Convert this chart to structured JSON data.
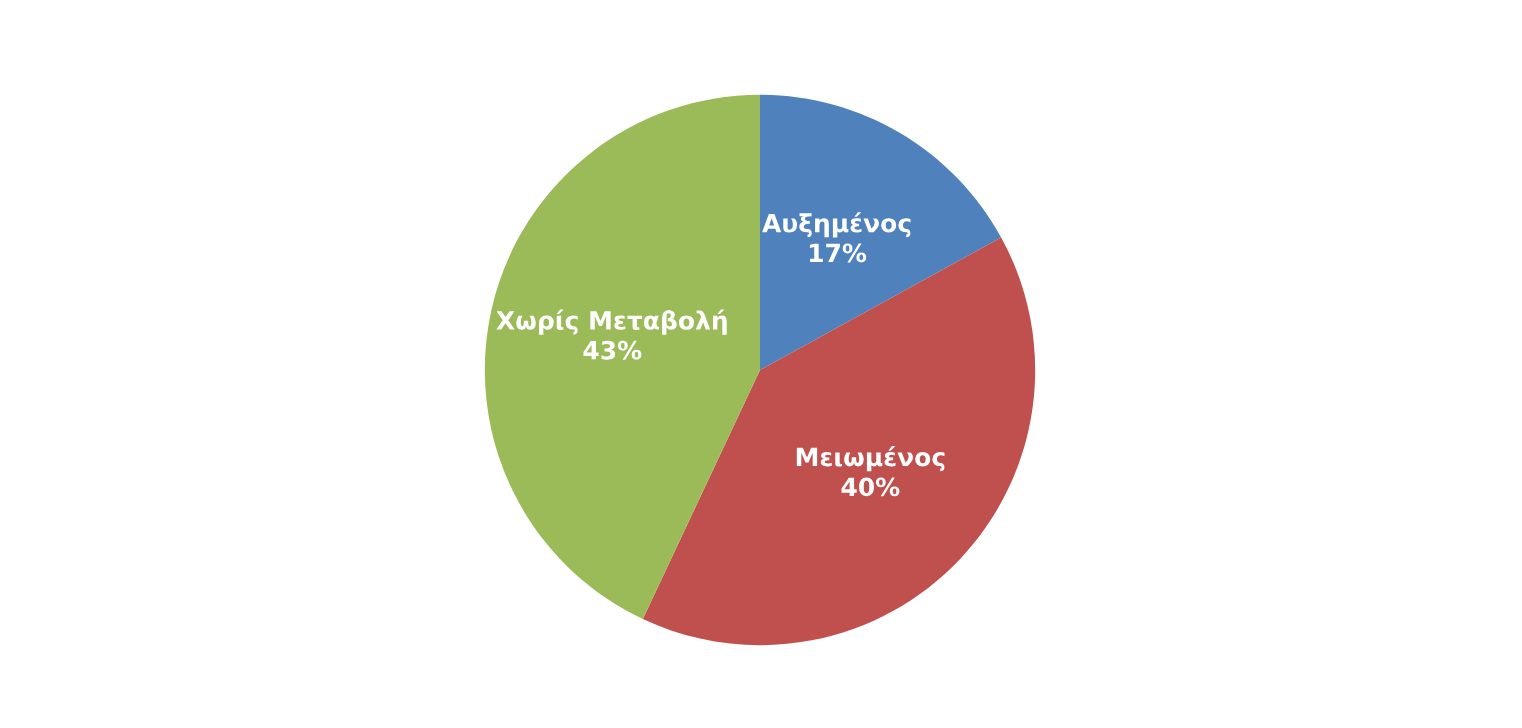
{
  "chart_data": {
    "type": "pie",
    "categories": [
      "Αυξημένος",
      "Μειωμένος",
      "Χωρίς Μεταβολή"
    ],
    "values": [
      17,
      40,
      43
    ],
    "colors": [
      "#4f81bd",
      "#c0504d",
      "#9bbb59"
    ],
    "value_labels": [
      "17%",
      "40%",
      "43%"
    ]
  }
}
